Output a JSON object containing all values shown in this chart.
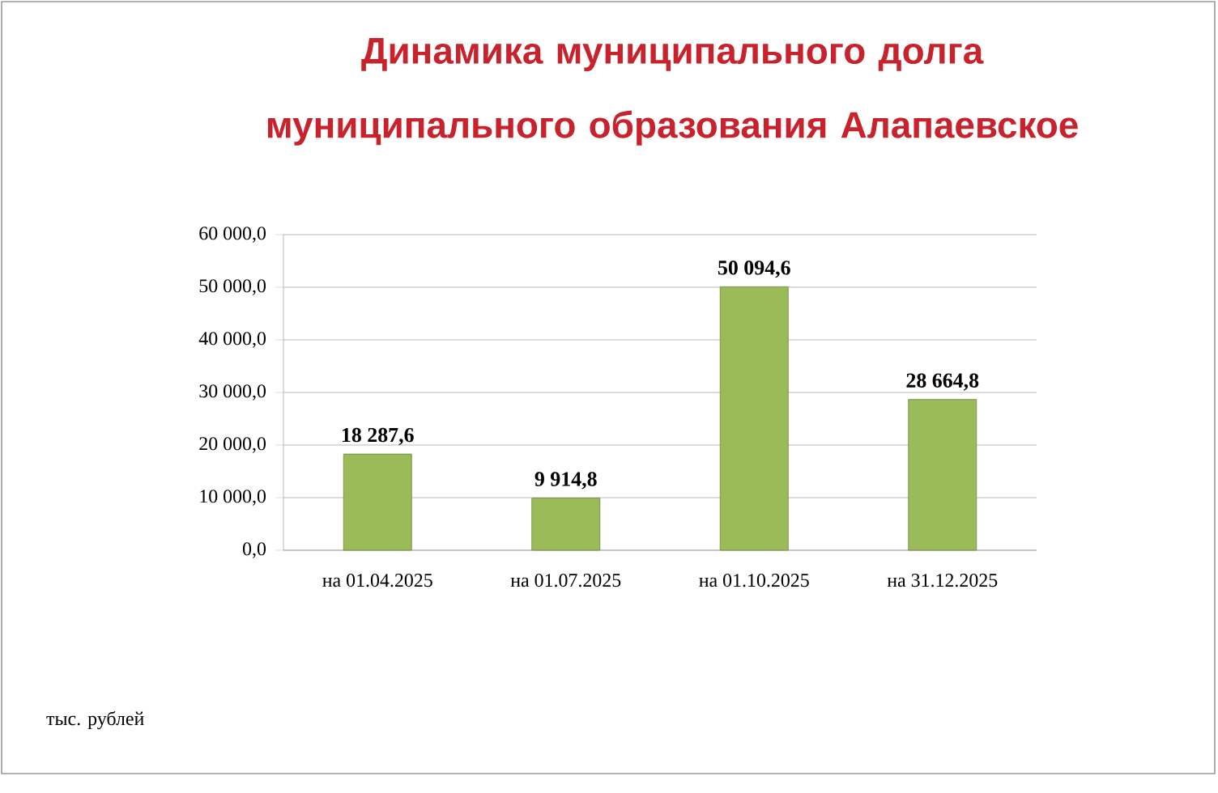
{
  "chart_data": {
    "type": "bar",
    "title": "Динамика муниципального долга муниципального образования Алапаевское",
    "categories": [
      "на 01.04.2025",
      "на 01.07.2025",
      "на 01.10.2025",
      "на 31.12.2025"
    ],
    "values": [
      18287.6,
      9914.8,
      50094.6,
      28664.8
    ],
    "value_labels": [
      "18 287,6",
      "9 914,8",
      "50 094,6",
      "28 664,8"
    ],
    "color": "#9bbb59",
    "ylim": [
      0,
      60000
    ],
    "yticks": [
      {
        "value": 0,
        "label": "0,0"
      },
      {
        "value": 10000,
        "label": "10 000,0"
      },
      {
        "value": 20000,
        "label": "20 000,0"
      },
      {
        "value": 30000,
        "label": "30 000,0"
      },
      {
        "value": 40000,
        "label": "40 000,0"
      },
      {
        "value": 50000,
        "label": "50 000,0"
      },
      {
        "value": 60000,
        "label": "60 000,0"
      }
    ],
    "grid": "y",
    "annotations": [
      "тыс. рублей"
    ]
  }
}
